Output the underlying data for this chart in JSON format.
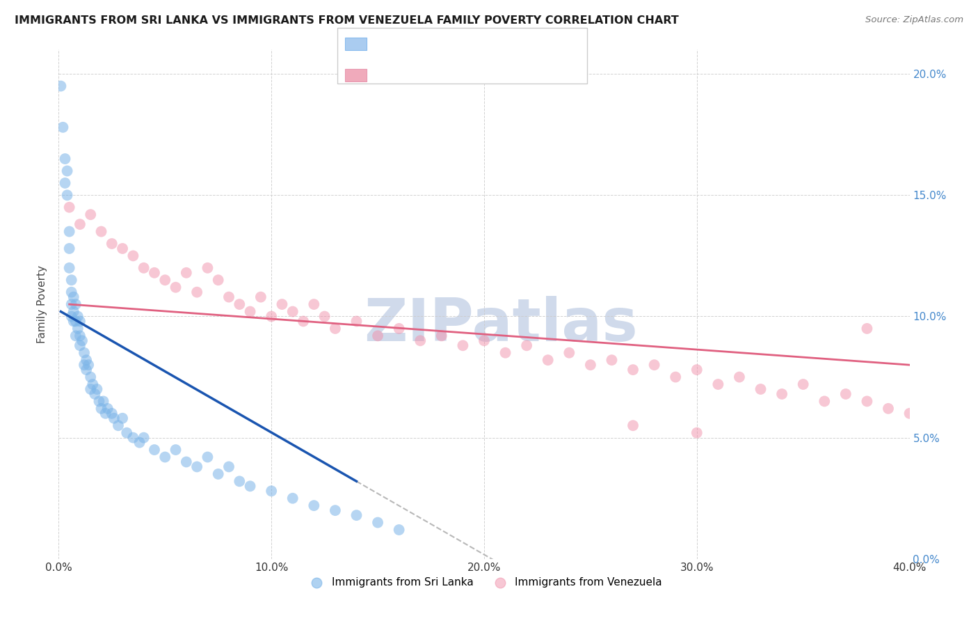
{
  "title": "IMMIGRANTS FROM SRI LANKA VS IMMIGRANTS FROM VENEZUELA FAMILY POVERTY CORRELATION CHART",
  "source": "Source: ZipAtlas.com",
  "ylabel": "Family Poverty",
  "scatter1_color": "#7ab4e8",
  "scatter2_color": "#f090aa",
  "trend1_color": "#1a55b0",
  "trend2_color": "#e06080",
  "watermark": "ZIPatlas",
  "watermark_color": "#c8d4e8",
  "xlim": [
    0.0,
    40.0
  ],
  "ylim": [
    0.0,
    21.0
  ],
  "xticks": [
    0.0,
    10.0,
    20.0,
    30.0,
    40.0
  ],
  "yticks": [
    0.0,
    5.0,
    10.0,
    15.0,
    20.0
  ],
  "sri_lanka_x": [
    0.1,
    0.2,
    0.3,
    0.3,
    0.4,
    0.4,
    0.5,
    0.5,
    0.5,
    0.6,
    0.6,
    0.6,
    0.6,
    0.7,
    0.7,
    0.7,
    0.8,
    0.8,
    0.8,
    0.9,
    0.9,
    1.0,
    1.0,
    1.0,
    1.1,
    1.2,
    1.2,
    1.3,
    1.3,
    1.4,
    1.5,
    1.5,
    1.6,
    1.7,
    1.8,
    1.9,
    2.0,
    2.1,
    2.2,
    2.3,
    2.5,
    2.6,
    2.8,
    3.0,
    3.2,
    3.5,
    3.8,
    4.0,
    4.5,
    5.0,
    5.5,
    6.0,
    6.5,
    7.0,
    7.5,
    8.0,
    8.5,
    9.0,
    10.0,
    11.0,
    12.0,
    13.0,
    14.0,
    15.0,
    16.0
  ],
  "sri_lanka_y": [
    19.5,
    17.8,
    16.5,
    15.5,
    16.0,
    15.0,
    13.5,
    12.8,
    12.0,
    11.5,
    11.0,
    10.5,
    10.0,
    10.8,
    10.2,
    9.8,
    10.5,
    9.8,
    9.2,
    10.0,
    9.5,
    9.8,
    9.2,
    8.8,
    9.0,
    8.5,
    8.0,
    8.2,
    7.8,
    8.0,
    7.5,
    7.0,
    7.2,
    6.8,
    7.0,
    6.5,
    6.2,
    6.5,
    6.0,
    6.2,
    6.0,
    5.8,
    5.5,
    5.8,
    5.2,
    5.0,
    4.8,
    5.0,
    4.5,
    4.2,
    4.5,
    4.0,
    3.8,
    4.2,
    3.5,
    3.8,
    3.2,
    3.0,
    2.8,
    2.5,
    2.2,
    2.0,
    1.8,
    1.5,
    1.2
  ],
  "venezuela_x": [
    0.5,
    1.0,
    1.5,
    2.0,
    2.5,
    3.0,
    3.5,
    4.0,
    4.5,
    5.0,
    5.5,
    6.0,
    6.5,
    7.0,
    7.5,
    8.0,
    8.5,
    9.0,
    9.5,
    10.0,
    10.5,
    11.0,
    11.5,
    12.0,
    12.5,
    13.0,
    14.0,
    15.0,
    16.0,
    17.0,
    18.0,
    19.0,
    20.0,
    21.0,
    22.0,
    23.0,
    24.0,
    25.0,
    26.0,
    27.0,
    28.0,
    29.0,
    30.0,
    31.0,
    32.0,
    33.0,
    34.0,
    35.0,
    36.0,
    37.0,
    38.0,
    39.0,
    40.0,
    27.0,
    30.0,
    38.0
  ],
  "venezuela_y": [
    14.5,
    13.8,
    14.2,
    13.5,
    13.0,
    12.8,
    12.5,
    12.0,
    11.8,
    11.5,
    11.2,
    11.8,
    11.0,
    12.0,
    11.5,
    10.8,
    10.5,
    10.2,
    10.8,
    10.0,
    10.5,
    10.2,
    9.8,
    10.5,
    10.0,
    9.5,
    9.8,
    9.2,
    9.5,
    9.0,
    9.2,
    8.8,
    9.0,
    8.5,
    8.8,
    8.2,
    8.5,
    8.0,
    8.2,
    7.8,
    8.0,
    7.5,
    7.8,
    7.2,
    7.5,
    7.0,
    6.8,
    7.2,
    6.5,
    6.8,
    6.5,
    6.2,
    6.0,
    5.5,
    5.2,
    9.5
  ],
  "trend1_x_start": 0.1,
  "trend1_x_end": 14.0,
  "trend1_y_start": 10.2,
  "trend1_y_end": 3.2,
  "trend1_dash_x_end": 23.0,
  "trend2_x_start": 0.5,
  "trend2_x_end": 40.0,
  "trend2_y_start": 10.5,
  "trend2_y_end": 8.0
}
